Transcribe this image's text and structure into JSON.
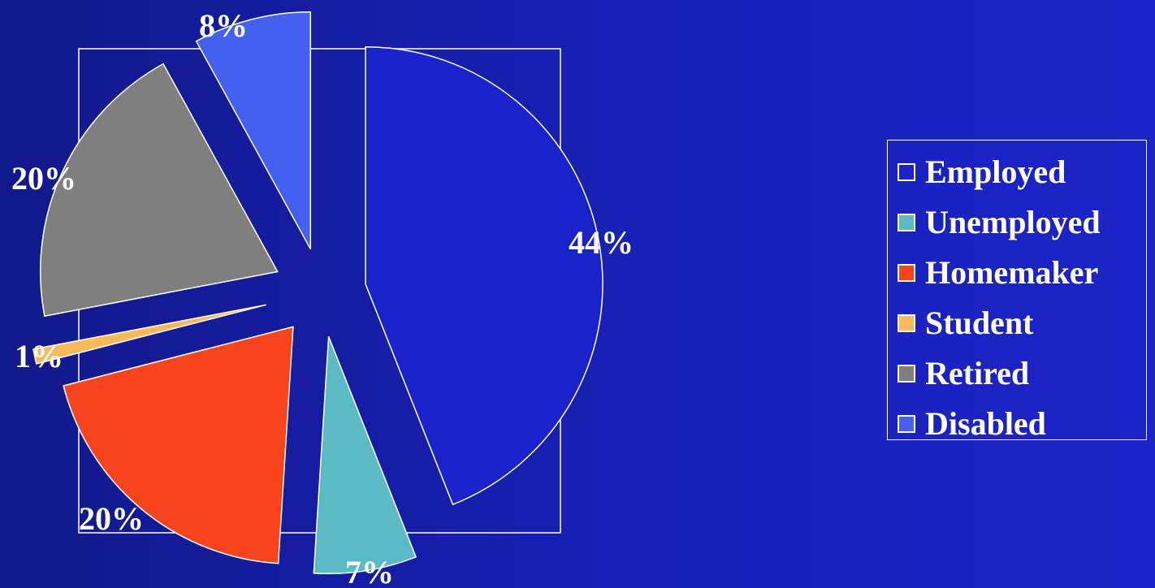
{
  "chart_data": {
    "type": "pie",
    "exploded": true,
    "slices": [
      {
        "name": "Employed",
        "value": 44,
        "label": "44%",
        "color": "#1a22c9"
      },
      {
        "name": "Unemployed",
        "value": 7,
        "label": "7%",
        "color": "#5bbac4"
      },
      {
        "name": "Homemaker",
        "value": 20,
        "label": "20%",
        "color": "#f8441c"
      },
      {
        "name": "Student",
        "value": 1,
        "label": "1%",
        "color": "#f7b95a"
      },
      {
        "name": "Retired",
        "value": 20,
        "label": "20%",
        "color": "#7f7f7f"
      },
      {
        "name": "Disabled",
        "value": 8,
        "label": "8%",
        "color": "#4460ee"
      }
    ],
    "legend": {
      "placement": "right",
      "entries": [
        "Employed",
        "Unemployed",
        "Homemaker",
        "Student",
        "Retired",
        "Disabled"
      ]
    },
    "colors": {
      "background": "#1518a8",
      "outline": "#ffffff",
      "text": "#ffffff"
    }
  }
}
